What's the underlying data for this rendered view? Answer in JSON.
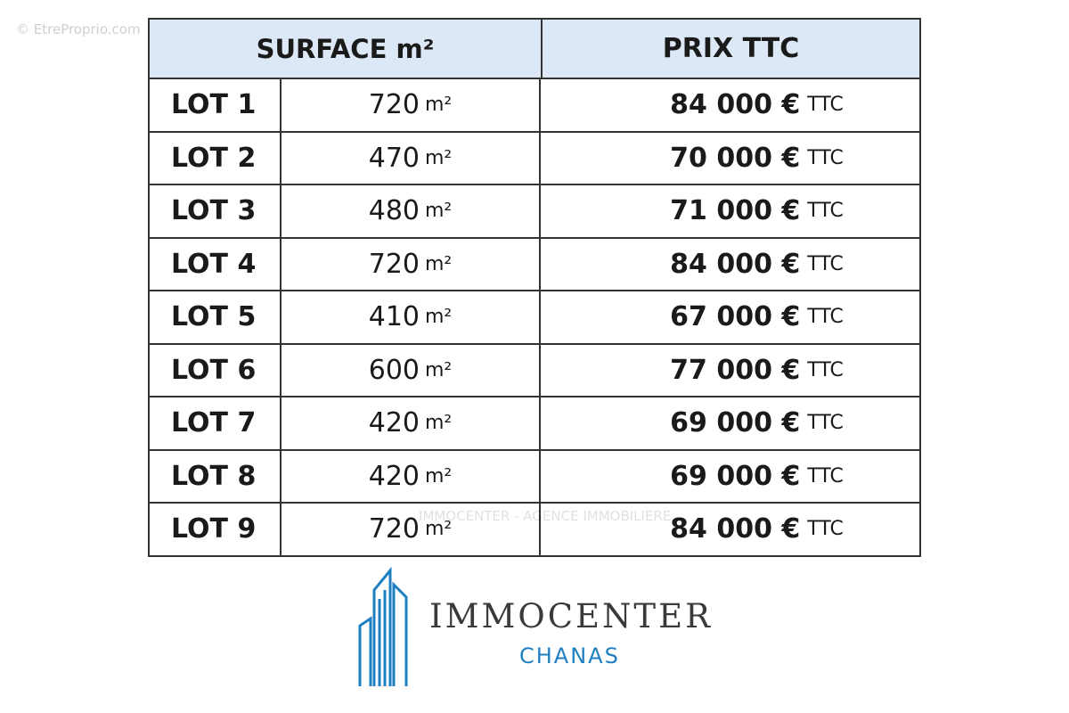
{
  "watermark": "© EtreProprio.com",
  "table": {
    "header": [
      "SURFACE m²",
      "PRIX TTC"
    ],
    "rows": [
      [
        "LOT 1",
        "720",
        "m²",
        "84 000 €",
        "TTC"
      ],
      [
        "LOT 2",
        "470",
        "m²",
        "70 000 €",
        "TTC"
      ],
      [
        "LOT 3",
        "480",
        "m²",
        "71 000 €",
        "TTC"
      ],
      [
        "LOT 4",
        "720",
        "m²",
        "84 000 €",
        "TTC"
      ],
      [
        "LOT 5",
        "410",
        "m²",
        "67 000 €",
        "TTC"
      ],
      [
        "LOT 6",
        "600",
        "m²",
        "77 000 €",
        "TTC"
      ],
      [
        "LOT 7",
        "420",
        "m²",
        "69 000 €",
        "TTC"
      ],
      [
        "LOT 8",
        "420",
        "m²",
        "69 000 €",
        "TTC"
      ],
      [
        "LOT 9",
        "720",
        "m²",
        "84 000 €",
        "TTC"
      ]
    ]
  },
  "overlay_watermark": "IMMOCENTER - AGENCE IMMOBILIERE",
  "logo": {
    "name": "IMMOCENTER",
    "city": "CHANAS"
  }
}
